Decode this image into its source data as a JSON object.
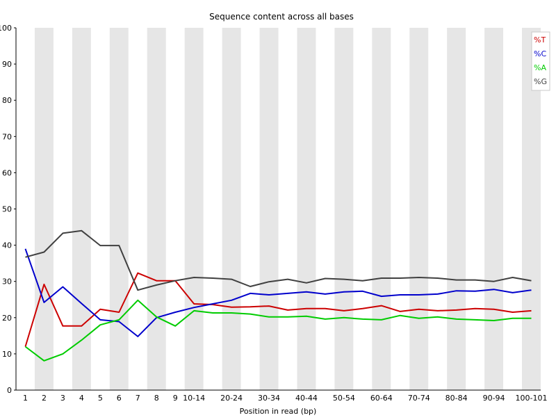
{
  "chart_data": {
    "type": "line",
    "title": "Sequence content across all bases",
    "xlabel": "Position in read (bp)",
    "ylabel": "",
    "ylim": [
      0,
      100
    ],
    "yticks": [
      0,
      10,
      20,
      30,
      40,
      50,
      60,
      70,
      80,
      90,
      100
    ],
    "grid": "alternating vertical bands",
    "legend_position": "top-right",
    "categories": [
      "1",
      "2",
      "3",
      "4",
      "5",
      "6",
      "7",
      "8",
      "9",
      "10-14",
      "15-19",
      "20-24",
      "25-29",
      "30-34",
      "35-39",
      "40-44",
      "45-49",
      "50-54",
      "55-59",
      "60-64",
      "65-69",
      "70-74",
      "75-79",
      "80-84",
      "85-89",
      "90-94",
      "95-99",
      "100-101"
    ],
    "tick_labels": [
      "1",
      "2",
      "3",
      "4",
      "5",
      "6",
      "7",
      "8",
      "9",
      "10-14",
      "",
      "20-24",
      "",
      "30-34",
      "",
      "40-44",
      "",
      "50-54",
      "",
      "60-64",
      "",
      "70-74",
      "",
      "80-84",
      "",
      "90-94",
      "",
      "100-101"
    ],
    "series": [
      {
        "name": "%T",
        "color": "#cc0000",
        "values": [
          12.0,
          29.2,
          17.7,
          17.7,
          22.3,
          21.5,
          32.3,
          30.2,
          30.2,
          23.8,
          23.6,
          22.9,
          23.0,
          23.2,
          22.1,
          22.5,
          22.5,
          21.9,
          22.5,
          23.3,
          21.7,
          22.3,
          21.9,
          22.1,
          22.5,
          22.3,
          21.5,
          21.9
        ]
      },
      {
        "name": "%C",
        "color": "#0000cc",
        "values": [
          39.0,
          24.2,
          28.5,
          23.9,
          19.4,
          18.9,
          14.8,
          20.0,
          21.5,
          22.8,
          23.8,
          24.8,
          26.7,
          26.3,
          26.7,
          27.1,
          26.5,
          27.1,
          27.3,
          25.9,
          26.3,
          26.3,
          26.5,
          27.4,
          27.3,
          27.8,
          26.9,
          27.6
        ]
      },
      {
        "name": "%A",
        "color": "#00cc00",
        "values": [
          12.0,
          8.1,
          10.0,
          13.8,
          18.0,
          19.4,
          24.8,
          20.2,
          17.7,
          21.9,
          21.3,
          21.3,
          21.0,
          20.2,
          20.2,
          20.4,
          19.6,
          20.0,
          19.6,
          19.4,
          20.6,
          19.8,
          20.2,
          19.6,
          19.4,
          19.2,
          19.8,
          19.8
        ]
      },
      {
        "name": "%G",
        "color": "#404040",
        "values": [
          36.7,
          38.1,
          43.3,
          44.0,
          39.9,
          39.9,
          27.6,
          29.0,
          30.2,
          31.1,
          30.9,
          30.6,
          28.6,
          29.9,
          30.6,
          29.6,
          30.8,
          30.6,
          30.2,
          30.9,
          30.9,
          31.1,
          30.9,
          30.4,
          30.4,
          30.0,
          31.1,
          30.2
        ]
      }
    ]
  }
}
